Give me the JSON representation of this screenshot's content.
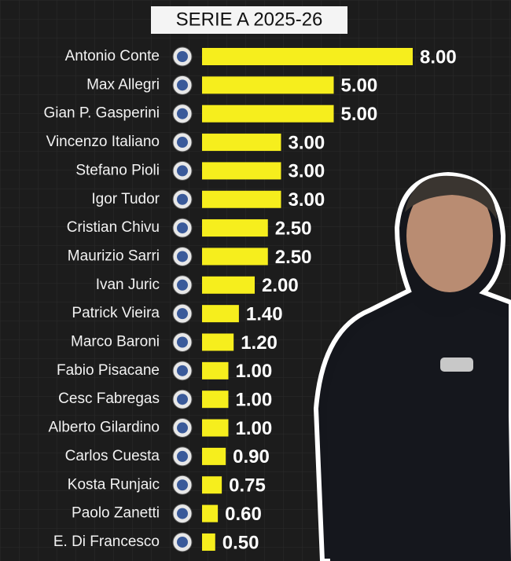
{
  "chart_data": {
    "type": "barh",
    "title": "SERIE A 2025-26",
    "categories": [
      "Antonio Conte",
      "Max Allegri",
      "Gian P. Gasperini",
      "Vincenzo Italiano",
      "Stefano Pioli",
      "Igor Tudor",
      "Cristian Chivu",
      "Maurizio Sarri",
      "Ivan Juric",
      "Patrick Vieira",
      "Marco Baroni",
      "Fabio Pisacane",
      "Cesc Fabregas",
      "Alberto Gilardino",
      "Carlos Cuesta",
      "Kosta Runjaic",
      "Paolo Zanetti",
      "E. Di Francesco"
    ],
    "values": [
      8,
      5,
      5,
      3,
      3,
      3,
      2.5,
      2.5,
      2,
      1.4,
      1.2,
      1,
      1,
      1,
      0.9,
      0.75,
      0.6,
      0.5
    ],
    "value_labels": [
      "8.00",
      "5.00",
      "5.00",
      "3.00",
      "3.00",
      "3.00",
      "2.50",
      "2.50",
      "2.00",
      "1.40",
      "1.20",
      "1.00",
      "1.00",
      "1.00",
      "0.90",
      "0.75",
      "0.60",
      "0.50"
    ],
    "color": "#f6ee1d"
  }
}
